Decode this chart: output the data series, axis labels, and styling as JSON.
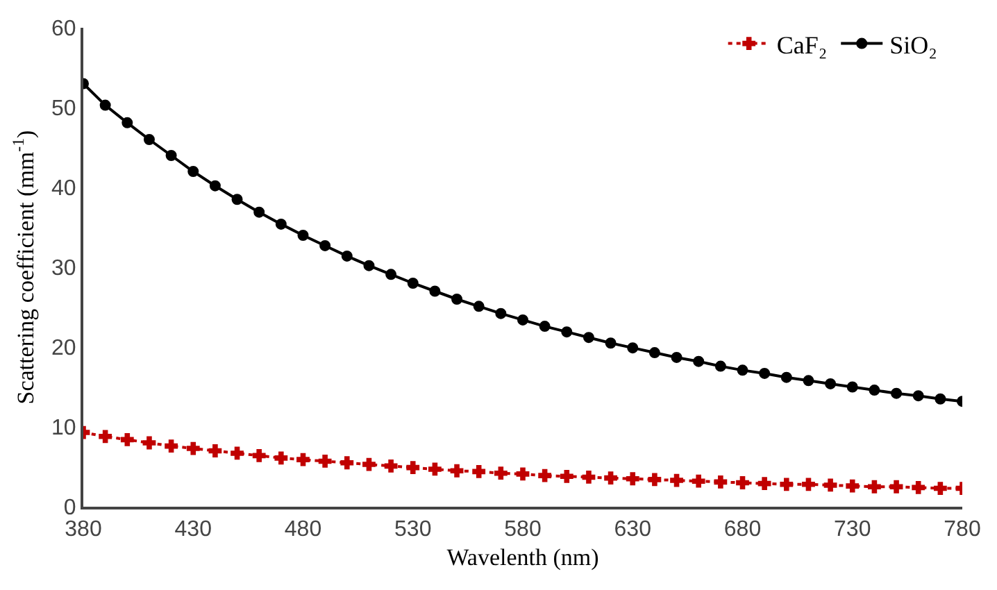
{
  "chart_data": {
    "type": "line",
    "xlabel": "Wavelenth (nm)",
    "ylabel": "Scattering coefficient (mm$^{-1}$)",
    "x": [
      380,
      390,
      400,
      410,
      420,
      430,
      440,
      450,
      460,
      470,
      480,
      490,
      500,
      510,
      520,
      530,
      540,
      550,
      560,
      570,
      580,
      590,
      600,
      610,
      620,
      630,
      640,
      650,
      660,
      670,
      680,
      690,
      700,
      710,
      720,
      730,
      740,
      750,
      760,
      770,
      780
    ],
    "series": [
      {
        "name": "CaF₂",
        "color": "#c00000",
        "marker": "cross",
        "line_style": "dotted",
        "values": [
          9.3,
          8.8,
          8.4,
          8.0,
          7.6,
          7.3,
          7.0,
          6.7,
          6.4,
          6.1,
          5.9,
          5.7,
          5.5,
          5.3,
          5.1,
          4.9,
          4.7,
          4.5,
          4.4,
          4.2,
          4.1,
          3.9,
          3.8,
          3.7,
          3.6,
          3.5,
          3.4,
          3.3,
          3.2,
          3.1,
          3.0,
          2.9,
          2.8,
          2.8,
          2.7,
          2.6,
          2.5,
          2.5,
          2.4,
          2.3,
          2.3
        ]
      },
      {
        "name": "SiO₂",
        "color": "#000000",
        "marker": "circle",
        "line_style": "solid",
        "values": [
          53,
          50.3,
          48.1,
          46,
          44,
          42,
          40.2,
          38.5,
          36.9,
          35.4,
          34,
          32.7,
          31.4,
          30.2,
          29.1,
          28,
          27,
          26,
          25.1,
          24.2,
          23.4,
          22.6,
          21.9,
          21.2,
          20.5,
          19.9,
          19.3,
          18.7,
          18.2,
          17.6,
          17.1,
          16.7,
          16.2,
          15.8,
          15.4,
          15.0,
          14.6,
          14.2,
          13.9,
          13.5,
          13.2
        ]
      }
    ],
    "xlim": [
      380,
      780
    ],
    "xticks": [
      380,
      430,
      480,
      530,
      580,
      630,
      680,
      730,
      780
    ],
    "ylim": [
      0,
      60
    ],
    "yticks": [
      0,
      10,
      20,
      30,
      40,
      50,
      60
    ],
    "grid": false,
    "legend": "top right"
  }
}
